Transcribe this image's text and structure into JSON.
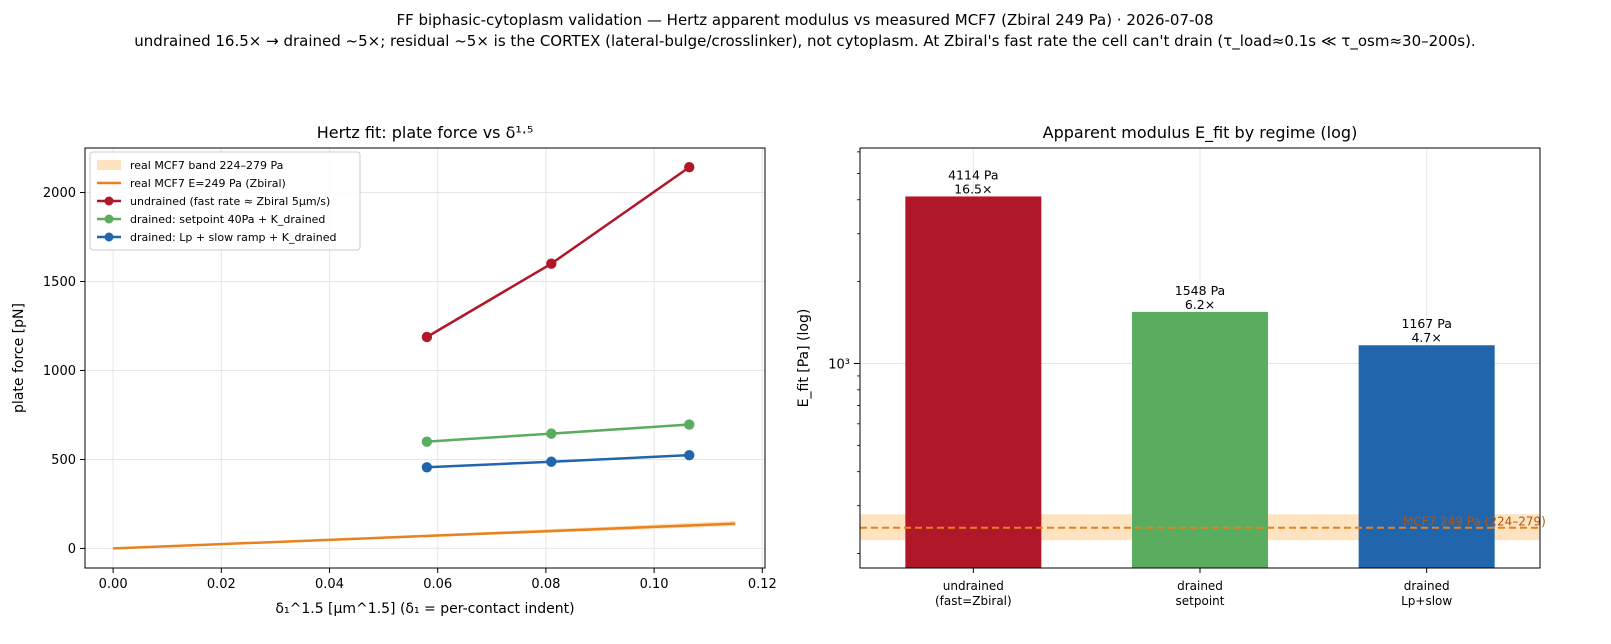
{
  "suptitle": {
    "line1": "FF biphasic-cytoplasm validation — Hertz apparent modulus vs measured MCF7 (Zbiral 249 Pa) · 2026-07-08",
    "line2": "undrained 16.5× → drained ~5×; residual ~5× is the CORTEX (lateral-bulge/crosslinker), not cytoplasm. At Zbiral's fast rate the cell can't drain (τ_load≈0.1s ≪ τ_osm≈30–200s)."
  },
  "colors": {
    "undrained": "#b01729",
    "setpoint": "#5aac5e",
    "lpslow": "#2166ac",
    "real": "#e8821e",
    "band": "#fde3c0",
    "grid": "#e6e6e6"
  },
  "chart_data": [
    {
      "type": "line",
      "title": "Hertz fit: plate force vs δ¹·⁵",
      "xlabel": "δ₁^1.5  [μm^1.5]  (δ₁ = per-contact indent)",
      "ylabel": "plate force  [pN]",
      "xlim": [
        -0.0052,
        0.1205
      ],
      "ylim": [
        -110,
        2250
      ],
      "xticks": [
        0.0,
        0.02,
        0.04,
        0.06,
        0.08,
        0.1,
        0.12
      ],
      "xtick_labels": [
        "0.00",
        "0.02",
        "0.04",
        "0.06",
        "0.08",
        "0.10",
        "0.12"
      ],
      "yticks": [
        0,
        500,
        1000,
        1500,
        2000
      ],
      "ytick_labels": [
        "0",
        "500",
        "1000",
        "1500",
        "2000"
      ],
      "grid": true,
      "legend_position": "top-left",
      "band": {
        "name": "real MCF7 band 224–279 Pa",
        "x": [
          0.0,
          0.115
        ],
        "y_low_end": 125,
        "y_high_end": 155
      },
      "reference_line": {
        "name": "real MCF7 E=249 Pa (Zbiral)",
        "x": [
          0.0,
          0.115
        ],
        "y": [
          0,
          139
        ]
      },
      "series": [
        {
          "name": "undrained (fast rate ≈ Zbiral 5μm/s)",
          "color_key": "undrained",
          "x": [
            0.058,
            0.081,
            0.1065
          ],
          "y": [
            1188,
            1600,
            2142
          ]
        },
        {
          "name": "drained: setpoint 40Pa + K_drained",
          "color_key": "setpoint",
          "x": [
            0.058,
            0.081,
            0.1065
          ],
          "y": [
            600,
            645,
            696
          ]
        },
        {
          "name": "drained: Lp + slow ramp + K_drained",
          "color_key": "lpslow",
          "x": [
            0.058,
            0.081,
            0.1065
          ],
          "y": [
            456,
            487,
            524
          ]
        }
      ]
    },
    {
      "type": "bar",
      "title": "Apparent modulus E_fit by regime  (log)",
      "xlabel": "",
      "ylabel": "E_fit  [Pa]  (log)",
      "yscale": "log",
      "ylim": [
        177,
        6200
      ],
      "ytick_major": 1000,
      "ytick_major_label": "10³",
      "ytick_minor": [
        200,
        300,
        400,
        500,
        600,
        700,
        800,
        900,
        2000,
        3000,
        4000,
        5000,
        6000
      ],
      "grid": true,
      "categories": [
        "undrained\n(fast=Zbiral)",
        "drained\nsetpoint",
        "drained\nLp+slow"
      ],
      "category_lines": [
        [
          "undrained",
          "(fast=Zbiral)"
        ],
        [
          "drained",
          "setpoint"
        ],
        [
          "drained",
          "Lp+slow"
        ]
      ],
      "values": [
        4114,
        1548,
        1167
      ],
      "color_keys": [
        "undrained",
        "setpoint",
        "lpslow"
      ],
      "value_labels": [
        "4114 Pa",
        "1548 Pa",
        "1167 Pa"
      ],
      "ratio_labels": [
        "16.5×",
        "6.2×",
        "4.7×"
      ],
      "reference": {
        "label": "MCF7 249 Pa (224–279)",
        "value": 249,
        "band": [
          224,
          279
        ]
      }
    }
  ]
}
